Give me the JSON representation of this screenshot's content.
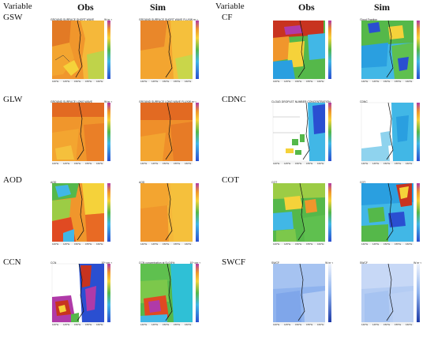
{
  "left_block": {
    "variable_header": "Variable",
    "obs_header": "Obs",
    "sim_header": "Sim",
    "rows": [
      {
        "label": "GSW",
        "obs_title": "GROUND SURFACE SHORT WAVE",
        "obs_unit": "W m⁻²",
        "sim_title": "GROUND SURFACE SHORT WAVE FLUXW m⁻²",
        "sim_unit": ""
      },
      {
        "label": "GLW",
        "obs_title": "GROUND SURFACE LONG WAVE",
        "obs_unit": "W m⁻²",
        "sim_title": "GROUND SURFACE LONG WAVE FLUXW m⁻²",
        "sim_unit": ""
      },
      {
        "label": "AOD",
        "obs_title": "AOD",
        "obs_unit": "",
        "sim_title": "AOD",
        "sim_unit": ""
      },
      {
        "label": "CCN",
        "obs_title": "CCN",
        "obs_unit": "10⁶ cm⁻³",
        "sim_title": "CCN concentration at S=0.5%",
        "sim_unit": "10⁶ cm⁻³"
      }
    ]
  },
  "right_block": {
    "variable_header": "Variable",
    "obs_header": "Obs",
    "sim_header": "Sim",
    "rows": [
      {
        "label": "CF",
        "obs_title": "",
        "obs_unit": "",
        "sim_title": "Cloud Fraction",
        "sim_unit": ""
      },
      {
        "label": "CDNC",
        "obs_title": "CLOUD DROPLET NUMBER CONCENTRATION",
        "obs_unit": "",
        "sim_title": "CDNC",
        "sim_unit": ""
      },
      {
        "label": "COT",
        "obs_title": "COT",
        "obs_unit": "",
        "sim_title": "COT",
        "sim_unit": ""
      },
      {
        "label": "SWCF",
        "obs_title": "SWCF",
        "obs_unit": "W m⁻²",
        "sim_title": "SWCF",
        "sim_unit": "W m⁻²"
      }
    ]
  },
  "axis_ticks": [
    "140°E",
    "145°E",
    "150°E",
    "155°E",
    "160°E"
  ],
  "colors": {
    "deep_red": "#c8331f",
    "orange": "#f0962c",
    "yellow": "#f5d23a",
    "green": "#55b84a",
    "cyan": "#41b7e6",
    "blue": "#2a4fd1",
    "light_blue": "#8fb3ee",
    "pale_blue": "#c7d8f6",
    "magenta": "#b03aa8"
  }
}
